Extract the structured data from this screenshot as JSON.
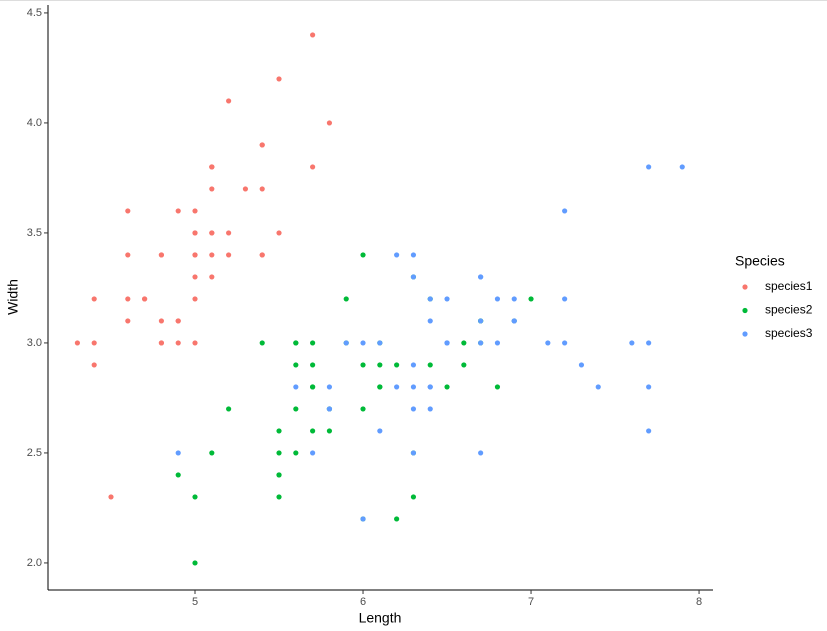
{
  "chart_data": {
    "type": "scatter",
    "x_label": "Length",
    "y_label": "Width",
    "legend_title": "Species",
    "legend": "right",
    "xlim": [
      4.125,
      8.083
    ],
    "ylim": [
      1.877,
      4.536
    ],
    "xticks": [
      5,
      6,
      7,
      8
    ],
    "yticks": [
      {
        "value": 2,
        "label": "2.0"
      },
      2.5,
      {
        "value": 3,
        "label": "3.0"
      },
      3.5,
      {
        "value": 4,
        "label": "4.0"
      },
      4.5
    ],
    "series": [
      {
        "name": "species1",
        "color": "#F8766D",
        "x": [
          5.1,
          4.9,
          4.7,
          4.6,
          5.0,
          5.4,
          4.6,
          5.0,
          4.4,
          4.9,
          5.4,
          4.8,
          4.8,
          4.3,
          5.8,
          5.7,
          5.4,
          5.1,
          5.7,
          5.1,
          5.4,
          5.1,
          4.6,
          5.1,
          4.8,
          5.0,
          5.0,
          5.2,
          5.2,
          4.7,
          4.8,
          5.4,
          5.2,
          5.5,
          4.9,
          5.0,
          5.5,
          4.9,
          4.4,
          5.1,
          5.0,
          4.5,
          4.4,
          5.0,
          5.1,
          4.8,
          5.1,
          4.6,
          5.3,
          5.0
        ],
        "values": [
          3.5,
          3.0,
          3.2,
          3.1,
          3.6,
          3.9,
          3.4,
          3.4,
          2.9,
          3.1,
          3.7,
          3.4,
          3.0,
          3.0,
          4.0,
          4.4,
          3.9,
          3.5,
          3.8,
          3.8,
          3.4,
          3.7,
          3.6,
          3.3,
          3.4,
          3.0,
          3.4,
          3.5,
          3.4,
          3.2,
          3.1,
          3.4,
          4.1,
          4.2,
          3.1,
          3.2,
          3.5,
          3.6,
          3.0,
          3.4,
          3.5,
          2.3,
          3.2,
          3.5,
          3.8,
          3.0,
          3.8,
          3.2,
          3.7,
          3.3
        ]
      },
      {
        "name": "species2",
        "color": "#00BA38",
        "x": [
          7.0,
          6.4,
          6.9,
          5.5,
          6.5,
          5.7,
          6.3,
          4.9,
          6.6,
          5.2,
          5.0,
          5.9,
          6.0,
          6.1,
          5.6,
          6.7,
          5.6,
          5.8,
          6.2,
          5.6,
          5.9,
          6.1,
          6.3,
          6.1,
          6.4,
          6.6,
          6.8,
          6.7,
          6.0,
          5.7,
          5.5,
          5.5,
          5.8,
          6.0,
          5.4,
          6.0,
          6.7,
          6.3,
          5.6,
          5.5,
          5.5,
          6.1,
          5.8,
          5.0,
          5.6,
          5.7,
          5.7,
          6.2,
          5.1,
          5.7
        ],
        "values": [
          3.2,
          3.2,
          3.1,
          2.3,
          2.8,
          2.8,
          3.3,
          2.4,
          2.9,
          2.7,
          2.0,
          3.0,
          2.2,
          2.9,
          2.9,
          3.1,
          3.0,
          2.7,
          2.2,
          2.5,
          3.2,
          2.8,
          2.5,
          2.8,
          2.9,
          3.0,
          2.8,
          3.0,
          2.9,
          2.6,
          2.4,
          2.4,
          2.7,
          2.7,
          3.0,
          3.4,
          3.1,
          2.3,
          3.0,
          2.5,
          2.6,
          3.0,
          2.6,
          2.3,
          2.7,
          3.0,
          2.9,
          2.9,
          2.5,
          2.8
        ]
      },
      {
        "name": "species3",
        "color": "#619CFF",
        "x": [
          6.3,
          5.8,
          7.1,
          6.3,
          6.5,
          7.6,
          4.9,
          7.3,
          6.7,
          7.2,
          6.5,
          6.4,
          6.8,
          5.7,
          5.8,
          6.4,
          6.5,
          7.7,
          7.7,
          6.0,
          6.9,
          5.6,
          7.7,
          6.3,
          6.7,
          7.2,
          6.2,
          6.1,
          6.4,
          7.2,
          7.4,
          7.9,
          6.4,
          6.3,
          6.1,
          7.7,
          6.3,
          6.4,
          6.0,
          6.9,
          6.7,
          6.9,
          5.8,
          6.8,
          6.7,
          6.7,
          6.3,
          6.5,
          6.2,
          5.9
        ],
        "values": [
          3.3,
          2.7,
          3.0,
          2.9,
          3.0,
          3.0,
          2.5,
          2.9,
          2.5,
          3.6,
          3.2,
          2.7,
          3.0,
          2.5,
          2.8,
          3.2,
          3.0,
          3.8,
          2.6,
          2.2,
          3.2,
          2.8,
          2.8,
          2.7,
          3.3,
          3.2,
          2.8,
          3.0,
          2.8,
          3.0,
          2.8,
          3.8,
          2.8,
          2.8,
          2.6,
          3.0,
          3.4,
          3.1,
          3.0,
          3.1,
          3.1,
          3.1,
          2.7,
          3.2,
          3.3,
          3.0,
          2.5,
          3.0,
          3.4,
          3.0
        ]
      }
    ]
  }
}
